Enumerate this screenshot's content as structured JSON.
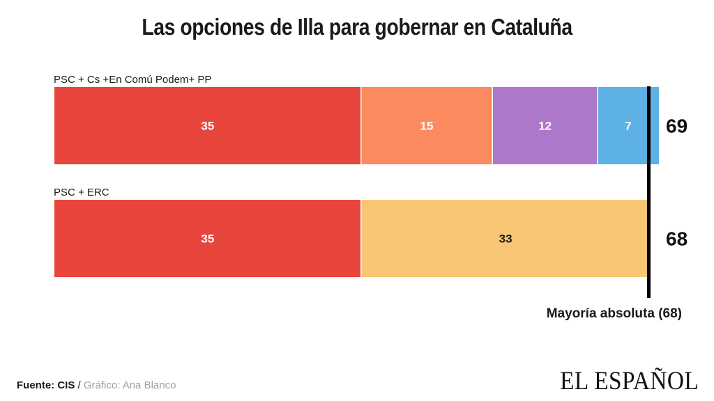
{
  "title": "Las opciones de Illa para gobernar en Cataluña",
  "chart_data": {
    "type": "bar",
    "orientation": "horizontal",
    "stacked": true,
    "xlim": [
      0,
      69
    ],
    "threshold": {
      "value": 68,
      "label": "Mayoría absoluta (68)"
    },
    "rows": [
      {
        "label": "PSC + Cs +En Comú Podem+ PP",
        "total": "69",
        "segments": [
          {
            "value": 35,
            "label": "35",
            "color": "#e8463d",
            "text_color": "#ffffff"
          },
          {
            "value": 15,
            "label": "15",
            "color": "#fb8b5e",
            "text_color": "#ffffff"
          },
          {
            "value": 12,
            "label": "12",
            "color": "#ad78c9",
            "text_color": "#ffffff"
          },
          {
            "value": 7,
            "label": "7",
            "color": "#5eb1e4",
            "text_color": "#ffffff"
          }
        ]
      },
      {
        "label": "PSC + ERC",
        "total": "68",
        "segments": [
          {
            "value": 35,
            "label": "35",
            "color": "#e8463d",
            "text_color": "#ffffff"
          },
          {
            "value": 33,
            "label": "33",
            "color": "#f8c674",
            "text_color": "#1a1a1a"
          }
        ]
      }
    ]
  },
  "footer": {
    "source_label": "Fuente: CIS",
    "separator": " / ",
    "credit": "Gráfico: Ana Blanco"
  },
  "logo": "EL ESPAÑOL"
}
